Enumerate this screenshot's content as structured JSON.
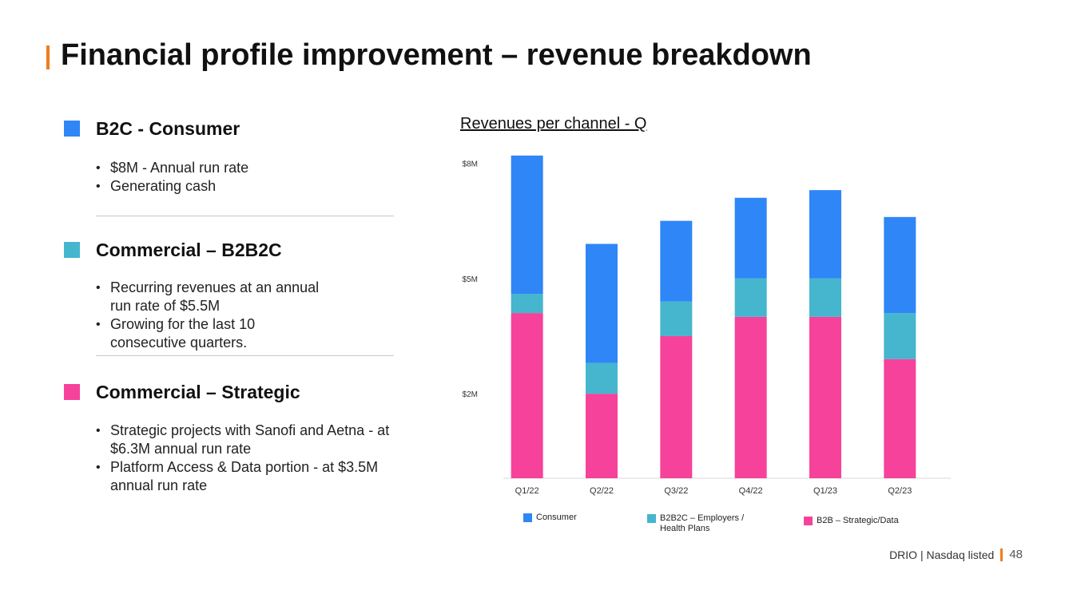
{
  "title": "Financial profile improvement – revenue breakdown",
  "colors": {
    "accent": "#f07c1d",
    "consumer": "#2f86f6",
    "b2b2c": "#45b6ce",
    "strategic": "#f6429a"
  },
  "sections": [
    {
      "title": "B2C - Consumer",
      "color": "#2f86f6",
      "bullets": [
        "$8M - Annual run rate",
        "Generating cash"
      ]
    },
    {
      "title": "Commercial – B2B2C",
      "color": "#45b6ce",
      "bullets": [
        "Recurring revenues at an annual run rate of $5.5M",
        "Growing for the last 10 consecutive quarters."
      ]
    },
    {
      "title": "Commercial – Strategic",
      "color": "#f6429a",
      "bullets": [
        "Strategic projects with Sanofi and Aetna - at $6.3M annual run rate",
        "Platform Access & Data portion - at $3.5M annual run rate"
      ]
    }
  ],
  "chart_data": {
    "type": "bar",
    "stacked": true,
    "title": "Revenues per channel - Q",
    "xlabel": "",
    "ylabel": "",
    "categories": [
      "Q1/22",
      "Q2/22",
      "Q3/22",
      "Q4/22",
      "Q1/23",
      "Q2/23"
    ],
    "series": [
      {
        "name": "B2B – Strategic/Data",
        "color": "#f6429a",
        "values": [
          4.3,
          2.2,
          3.7,
          4.2,
          4.2,
          3.1
        ]
      },
      {
        "name": "B2B2C – Employers / Health Plans",
        "color": "#45b6ce",
        "values": [
          0.5,
          0.8,
          0.9,
          1.0,
          1.0,
          1.2
        ]
      },
      {
        "name": "Consumer",
        "color": "#2f86f6",
        "values": [
          3.6,
          3.1,
          2.1,
          2.1,
          2.3,
          2.5
        ]
      }
    ],
    "y_ticks": [
      {
        "label": "$2M",
        "value": 2.2
      },
      {
        "label": "$5M",
        "value": 5.2
      },
      {
        "label": "$8M",
        "value": 8.2
      }
    ],
    "ylim": [
      0,
      8.5
    ],
    "legend": [
      "Consumer",
      "B2B2C – Employers / Health Plans",
      "B2B – Strategic/Data"
    ],
    "legend_position": "bottom"
  },
  "footer": {
    "company": "DRIO | Nasdaq listed",
    "page": "48"
  }
}
